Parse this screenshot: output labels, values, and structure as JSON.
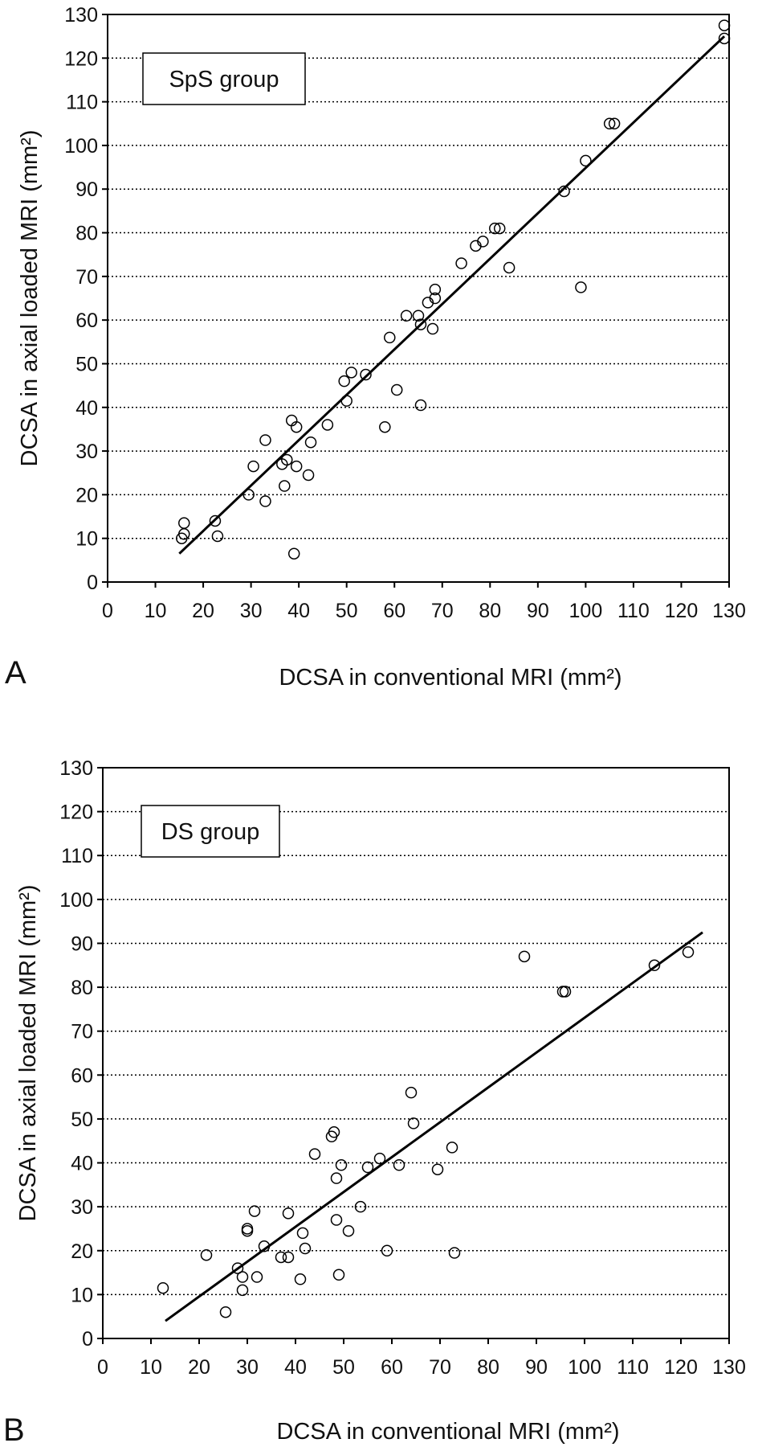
{
  "chart_data": [
    {
      "type": "scatter",
      "panel_label": "A",
      "legend_label": "SpS group",
      "xlabel": "DCSA in conventional MRI (mm²)",
      "ylabel": "DCSA in axial loaded MRI (mm²)",
      "xlim": [
        0,
        130
      ],
      "ylim": [
        0,
        130
      ],
      "xticks": [
        0,
        10,
        20,
        30,
        40,
        50,
        60,
        70,
        80,
        90,
        100,
        110,
        120,
        130
      ],
      "yticks": [
        0,
        10,
        20,
        30,
        40,
        50,
        60,
        70,
        80,
        90,
        100,
        110,
        120,
        130
      ],
      "grid": "horizontal dotted",
      "legend_position": "top-left",
      "fit_line": [
        [
          15,
          6.5
        ],
        [
          129,
          125
        ]
      ],
      "points": [
        [
          16,
          13.5
        ],
        [
          16,
          11
        ],
        [
          15.5,
          10
        ],
        [
          22.5,
          14
        ],
        [
          23,
          10.5
        ],
        [
          29.5,
          20
        ],
        [
          30.5,
          26.5
        ],
        [
          33,
          32.5
        ],
        [
          33,
          18.5
        ],
        [
          36.5,
          27
        ],
        [
          37,
          22
        ],
        [
          37.5,
          28
        ],
        [
          38.5,
          37
        ],
        [
          39.5,
          35.5
        ],
        [
          39.5,
          26.5
        ],
        [
          39,
          6.5
        ],
        [
          42,
          24.5
        ],
        [
          42.5,
          32
        ],
        [
          46,
          36
        ],
        [
          49.5,
          46
        ],
        [
          50,
          41.5
        ],
        [
          51,
          48
        ],
        [
          54,
          47.5
        ],
        [
          58,
          35.5
        ],
        [
          59,
          56
        ],
        [
          60.5,
          44
        ],
        [
          62.5,
          61
        ],
        [
          65,
          61
        ],
        [
          65.5,
          59
        ],
        [
          65.5,
          40.5
        ],
        [
          67,
          64
        ],
        [
          68,
          58
        ],
        [
          68.5,
          65
        ],
        [
          68.5,
          67
        ],
        [
          74,
          73
        ],
        [
          77,
          77
        ],
        [
          78.5,
          78
        ],
        [
          81,
          81
        ],
        [
          82,
          81
        ],
        [
          84,
          72
        ],
        [
          95.5,
          89.5
        ],
        [
          99,
          67.5
        ],
        [
          100,
          96.5
        ],
        [
          105,
          105
        ],
        [
          106,
          105
        ],
        [
          129,
          127.5
        ],
        [
          129,
          124.5
        ]
      ]
    },
    {
      "type": "scatter",
      "panel_label": "B",
      "legend_label": "DS group",
      "xlabel": "DCSA in conventional MRI (mm²)",
      "ylabel": "DCSA in axial loaded MRI (mm²)",
      "xlim": [
        0,
        130
      ],
      "ylim": [
        0,
        130
      ],
      "xticks": [
        0,
        10,
        20,
        30,
        40,
        50,
        60,
        70,
        80,
        90,
        100,
        110,
        120,
        130
      ],
      "yticks": [
        0,
        10,
        20,
        30,
        40,
        50,
        60,
        70,
        80,
        90,
        100,
        110,
        120,
        130
      ],
      "grid": "horizontal dotted",
      "legend_position": "top-left",
      "fit_line": [
        [
          13,
          4
        ],
        [
          124.5,
          92.5
        ]
      ],
      "points": [
        [
          12.5,
          11.5
        ],
        [
          21.5,
          19
        ],
        [
          25.5,
          6
        ],
        [
          28,
          16
        ],
        [
          29,
          14
        ],
        [
          29,
          11
        ],
        [
          30,
          25
        ],
        [
          30,
          24.5
        ],
        [
          31.5,
          29
        ],
        [
          32,
          14
        ],
        [
          33.5,
          21
        ],
        [
          37,
          18.5
        ],
        [
          38.5,
          18.5
        ],
        [
          38.5,
          28.5
        ],
        [
          41,
          13.5
        ],
        [
          41.5,
          24
        ],
        [
          42,
          20.5
        ],
        [
          44,
          42
        ],
        [
          47.5,
          46
        ],
        [
          48,
          47
        ],
        [
          48.5,
          36.5
        ],
        [
          48.5,
          27
        ],
        [
          49,
          14.5
        ],
        [
          49.5,
          39.5
        ],
        [
          51,
          24.5
        ],
        [
          53.5,
          30
        ],
        [
          55,
          39
        ],
        [
          57.5,
          41
        ],
        [
          59,
          20
        ],
        [
          61.5,
          39.5
        ],
        [
          64,
          56
        ],
        [
          64.5,
          49
        ],
        [
          69.5,
          38.5
        ],
        [
          72.5,
          43.5
        ],
        [
          73,
          19.5
        ],
        [
          87.5,
          87
        ],
        [
          95.5,
          79
        ],
        [
          96,
          79
        ],
        [
          114.5,
          85
        ],
        [
          121.5,
          88
        ]
      ]
    }
  ]
}
